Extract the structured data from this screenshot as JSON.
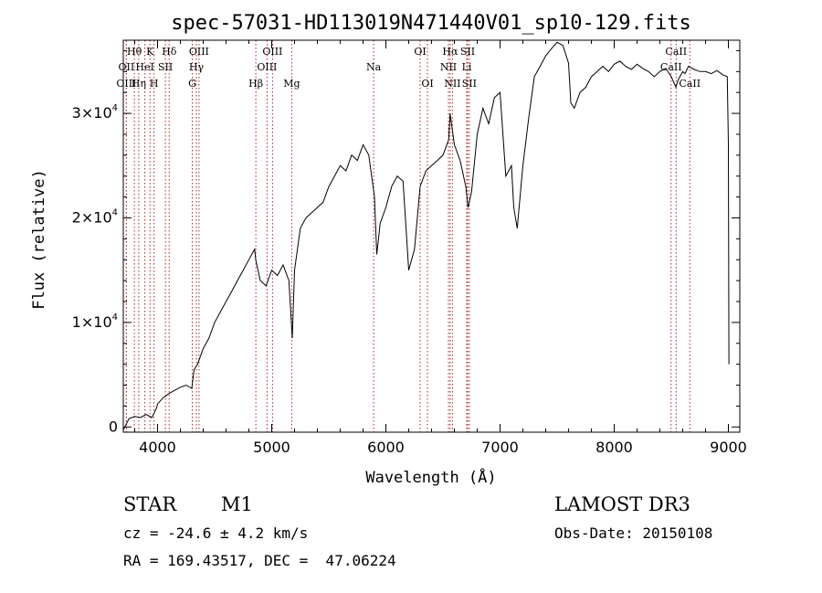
{
  "chart_data": {
    "type": "line",
    "title": "spec-57031-HD113019N471440V01_sp10-129.fits",
    "xlabel": "Wavelength (Å)",
    "ylabel": "Flux (relative)",
    "xlim": [
      3700,
      9100
    ],
    "ylim": [
      -500,
      37000
    ],
    "x_ticks": [
      4000,
      5000,
      6000,
      7000,
      8000,
      9000
    ],
    "y_ticks": [
      {
        "value": 0,
        "mantissa": "0",
        "exp": ""
      },
      {
        "value": 10000,
        "mantissa": "1×10",
        "exp": "4"
      },
      {
        "value": 20000,
        "mantissa": "2×10",
        "exp": "4"
      },
      {
        "value": 30000,
        "mantissa": "3×10",
        "exp": "4"
      }
    ],
    "grid": false,
    "series": [
      {
        "x": [
          3700,
          3750,
          3800,
          3850,
          3900,
          3950,
          3990,
          4000,
          4050,
          4100,
          4150,
          4200,
          4250,
          4300,
          4320,
          4350,
          4400,
          4450,
          4500,
          4550,
          4600,
          4650,
          4700,
          4750,
          4800,
          4850,
          4860,
          4900,
          4950,
          5000,
          5050,
          5100,
          5150,
          5180,
          5200,
          5250,
          5300,
          5350,
          5400,
          5450,
          5500,
          5550,
          5600,
          5650,
          5700,
          5750,
          5800,
          5850,
          5900,
          5920,
          5950,
          6000,
          6050,
          6100,
          6150,
          6200,
          6250,
          6300,
          6350,
          6400,
          6450,
          6500,
          6550,
          6562,
          6600,
          6650,
          6700,
          6720,
          6750,
          6800,
          6850,
          6900,
          6950,
          7000,
          7050,
          7100,
          7120,
          7150,
          7200,
          7250,
          7300,
          7350,
          7400,
          7450,
          7500,
          7550,
          7600,
          7620,
          7650,
          7700,
          7750,
          7800,
          7850,
          7900,
          7950,
          8000,
          8050,
          8100,
          8150,
          8200,
          8250,
          8300,
          8350,
          8400,
          8450,
          8500,
          8540,
          8560,
          8600,
          8620,
          8650,
          8700,
          8750,
          8800,
          8850,
          8900,
          8950,
          8990,
          9000,
          9005
        ],
        "values": [
          -300,
          800,
          1000,
          900,
          1200,
          900,
          1800,
          2200,
          2800,
          3200,
          3500,
          3800,
          4000,
          3700,
          5500,
          6000,
          7500,
          8500,
          10000,
          11000,
          12000,
          13000,
          14000,
          15000,
          16000,
          17000,
          16000,
          14000,
          13500,
          15000,
          14500,
          15500,
          14000,
          8500,
          15000,
          19000,
          20000,
          20500,
          21000,
          21500,
          23000,
          24000,
          25000,
          24500,
          26000,
          25500,
          27000,
          26000,
          22000,
          16500,
          19500,
          21000,
          23000,
          24000,
          23500,
          15000,
          17000,
          23000,
          24500,
          25000,
          25500,
          26000,
          27500,
          30000,
          27000,
          25500,
          23000,
          21000,
          22500,
          28000,
          30500,
          29000,
          31500,
          32000,
          24000,
          25000,
          21000,
          19000,
          25000,
          29500,
          33500,
          34500,
          35500,
          36200,
          36800,
          36500,
          34800,
          31000,
          30500,
          32000,
          32500,
          33500,
          34000,
          34500,
          34000,
          34700,
          35000,
          34500,
          34200,
          34700,
          34300,
          34000,
          33500,
          34000,
          34300,
          33500,
          32500,
          33200,
          34000,
          33800,
          34500,
          34200,
          34000,
          34000,
          33800,
          34100,
          33700,
          33500,
          27000,
          6000
        ]
      }
    ],
    "spectral_lines": [
      {
        "label": "Hθ",
        "wl": 3797,
        "row": 0
      },
      {
        "label": "OII",
        "wl": 3727,
        "row": 1
      },
      {
        "label": "OIII",
        "wl": 3727,
        "row": 2
      },
      {
        "label": "HeI",
        "wl": 3889,
        "row": 1
      },
      {
        "label": "Hη",
        "wl": 3835,
        "row": 2
      },
      {
        "label": "K",
        "wl": 3934,
        "row": 0
      },
      {
        "label": "H",
        "wl": 3969,
        "row": 2
      },
      {
        "label": "SII",
        "wl": 4069,
        "row": 1
      },
      {
        "label": "Hδ",
        "wl": 4102,
        "row": 0
      },
      {
        "label": "OIII",
        "wl": 4363,
        "row": 0
      },
      {
        "label": "Hγ",
        "wl": 4340,
        "row": 1
      },
      {
        "label": "G",
        "wl": 4304,
        "row": 2
      },
      {
        "label": "Hβ",
        "wl": 4861,
        "row": 2
      },
      {
        "label": "OIII",
        "wl": 5007,
        "row": 0
      },
      {
        "label": "OIII",
        "wl": 4959,
        "row": 1
      },
      {
        "label": "Mg",
        "wl": 5175,
        "row": 2
      },
      {
        "label": "Na",
        "wl": 5893,
        "row": 1
      },
      {
        "label": "OI",
        "wl": 6300,
        "row": 0
      },
      {
        "label": "OI",
        "wl": 6364,
        "row": 2
      },
      {
        "label": "Hα",
        "wl": 6563,
        "row": 0
      },
      {
        "label": "NII",
        "wl": 6548,
        "row": 1
      },
      {
        "label": "NII",
        "wl": 6583,
        "row": 2
      },
      {
        "label": "SII",
        "wl": 6716,
        "row": 0
      },
      {
        "label": "Li",
        "wl": 6708,
        "row": 1
      },
      {
        "label": "SII",
        "wl": 6731,
        "row": 2
      },
      {
        "label": "CaII",
        "wl": 8542,
        "row": 0
      },
      {
        "label": "CaII",
        "wl": 8498,
        "row": 1
      },
      {
        "label": "CaII",
        "wl": 8662,
        "row": 2
      }
    ]
  },
  "info": {
    "class": "STAR",
    "subclass": "M1",
    "survey": "LAMOST DR3",
    "cz": "cz = -24.6 ± 4.2 km/s",
    "obs_date": "Obs-Date: 20150108",
    "coords": "RA = 169.43517, DEC =  47.06224"
  },
  "colors": {
    "spectrum": "#000000",
    "line_markers": "#b22222",
    "axes": "#000000"
  }
}
